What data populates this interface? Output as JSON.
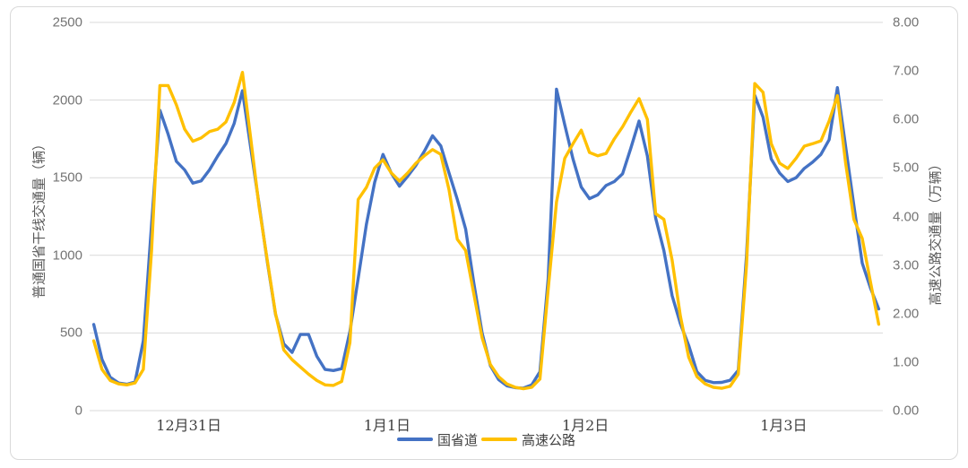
{
  "chart_data": {
    "type": "line",
    "title": "",
    "days": [
      "12月31日",
      "1月1日",
      "1月2日",
      "1月3日"
    ],
    "points_per_day": 24,
    "grid": "horizontal-only",
    "legend_position": "bottom-center",
    "left_axis": {
      "title": "普通国省干线交通量（辆）",
      "min": 0,
      "max": 2500,
      "tick_labels": [
        "0",
        "500",
        "1000",
        "1500",
        "2000",
        "2500"
      ]
    },
    "right_axis": {
      "title": "高速公路交通量（万辆）",
      "min": 0,
      "max": 8,
      "tick_labels": [
        "0.00",
        "1.00",
        "2.00",
        "3.00",
        "4.00",
        "5.00",
        "6.00",
        "7.00",
        "8.00"
      ]
    },
    "series": [
      {
        "name": "国省道",
        "axis": "left",
        "color": "#4472C4",
        "values": [
          555,
          330,
          215,
          178,
          170,
          185,
          450,
          1200,
          1935,
          1780,
          1605,
          1550,
          1465,
          1480,
          1550,
          1640,
          1720,
          1850,
          2060,
          1690,
          1330,
          960,
          620,
          430,
          375,
          490,
          490,
          350,
          265,
          258,
          270,
          510,
          850,
          1200,
          1470,
          1650,
          1530,
          1445,
          1510,
          1580,
          1670,
          1770,
          1705,
          1530,
          1360,
          1170,
          820,
          500,
          290,
          200,
          160,
          148,
          145,
          165,
          250,
          850,
          2070,
          1840,
          1620,
          1440,
          1365,
          1390,
          1450,
          1475,
          1525,
          1690,
          1865,
          1640,
          1240,
          1030,
          740,
          560,
          420,
          250,
          195,
          180,
          182,
          195,
          260,
          1000,
          2030,
          1890,
          1620,
          1530,
          1475,
          1500,
          1560,
          1600,
          1650,
          1745,
          2080,
          1700,
          1320,
          950,
          790,
          655
        ]
      },
      {
        "name": "高速公路",
        "axis": "right",
        "color": "#FFC000",
        "values": [
          1.44,
          0.85,
          0.62,
          0.55,
          0.53,
          0.57,
          0.85,
          3.3,
          6.7,
          6.7,
          6.3,
          5.8,
          5.55,
          5.62,
          5.75,
          5.8,
          5.95,
          6.35,
          6.97,
          5.6,
          4.21,
          3.1,
          2.0,
          1.25,
          1.05,
          0.9,
          0.75,
          0.62,
          0.53,
          0.52,
          0.6,
          1.4,
          4.35,
          4.6,
          5.0,
          5.17,
          4.9,
          4.73,
          4.9,
          5.1,
          5.25,
          5.38,
          5.28,
          4.55,
          3.53,
          3.3,
          2.4,
          1.5,
          0.95,
          0.7,
          0.55,
          0.48,
          0.45,
          0.48,
          0.65,
          2.5,
          4.3,
          5.2,
          5.5,
          5.78,
          5.32,
          5.25,
          5.3,
          5.6,
          5.85,
          6.15,
          6.43,
          6.0,
          4.06,
          3.94,
          3.1,
          1.95,
          1.1,
          0.7,
          0.55,
          0.48,
          0.46,
          0.5,
          0.75,
          3.0,
          6.74,
          6.56,
          5.5,
          5.1,
          4.99,
          5.2,
          5.45,
          5.5,
          5.56,
          5.97,
          6.49,
          5.1,
          3.94,
          3.55,
          2.65,
          1.78
        ]
      }
    ],
    "gridline_color": "#d9d9d9",
    "tick_label_color": "#747474"
  }
}
